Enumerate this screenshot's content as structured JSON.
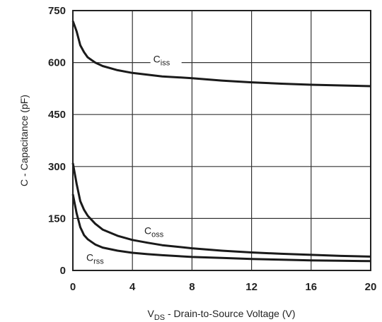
{
  "chart_data": {
    "type": "line",
    "xlabel": {
      "main": "V",
      "sub": "DS",
      "rest": " - Drain-to-Source Voltage (V)"
    },
    "ylabel": "C - Capacitance (pF)",
    "xlim": [
      0,
      20
    ],
    "ylim": [
      0,
      750
    ],
    "xticks": [
      0,
      4,
      8,
      12,
      16,
      20
    ],
    "yticks": [
      0,
      150,
      300,
      450,
      600,
      750
    ],
    "grid": true,
    "series": [
      {
        "name": "Ciss",
        "label_main": "C",
        "label_sub": "iss",
        "points": [
          [
            0,
            720
          ],
          [
            0.25,
            690
          ],
          [
            0.5,
            650
          ],
          [
            0.75,
            630
          ],
          [
            1,
            615
          ],
          [
            1.5,
            600
          ],
          [
            2,
            590
          ],
          [
            3,
            578
          ],
          [
            4,
            570
          ],
          [
            5,
            565
          ],
          [
            6,
            560
          ],
          [
            8,
            555
          ],
          [
            10,
            548
          ],
          [
            12,
            543
          ],
          [
            14,
            539
          ],
          [
            16,
            536
          ],
          [
            18,
            534
          ],
          [
            20,
            532
          ]
        ]
      },
      {
        "name": "Coss",
        "label_main": "C",
        "label_sub": "oss",
        "points": [
          [
            0,
            310
          ],
          [
            0.25,
            250
          ],
          [
            0.5,
            200
          ],
          [
            0.75,
            175
          ],
          [
            1,
            158
          ],
          [
            1.5,
            135
          ],
          [
            2,
            118
          ],
          [
            3,
            100
          ],
          [
            4,
            88
          ],
          [
            5,
            80
          ],
          [
            6,
            73
          ],
          [
            8,
            64
          ],
          [
            10,
            57
          ],
          [
            12,
            52
          ],
          [
            14,
            48
          ],
          [
            16,
            45
          ],
          [
            18,
            42
          ],
          [
            20,
            40
          ]
        ]
      },
      {
        "name": "Crss",
        "label_main": "C",
        "label_sub": "rss",
        "points": [
          [
            0,
            220
          ],
          [
            0.25,
            165
          ],
          [
            0.5,
            125
          ],
          [
            0.75,
            102
          ],
          [
            1,
            90
          ],
          [
            1.5,
            75
          ],
          [
            2,
            66
          ],
          [
            3,
            57
          ],
          [
            4,
            51
          ],
          [
            5,
            47
          ],
          [
            6,
            44
          ],
          [
            8,
            39
          ],
          [
            10,
            36
          ],
          [
            12,
            33
          ],
          [
            14,
            31
          ],
          [
            16,
            29
          ],
          [
            18,
            28
          ],
          [
            20,
            27
          ]
        ]
      }
    ],
    "annotations": [
      {
        "series": "Ciss",
        "x": 5.4,
        "y": 600
      },
      {
        "series": "Coss",
        "x": 4.8,
        "y": 105
      },
      {
        "series": "Crss",
        "x": 0.9,
        "y": 28
      }
    ]
  }
}
